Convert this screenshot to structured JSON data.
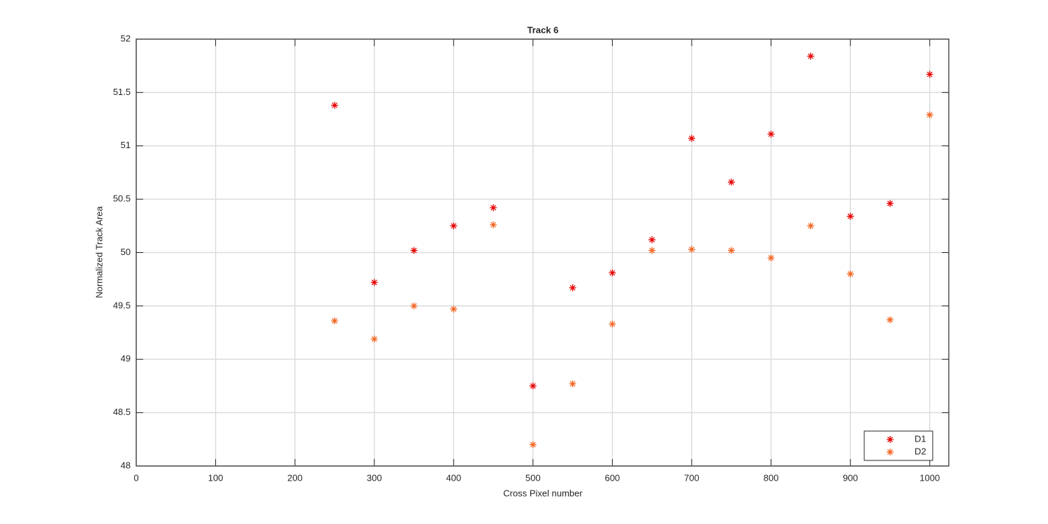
{
  "chart_data": {
    "type": "scatter",
    "title": "Track 6",
    "x_label": "Cross Pixel number",
    "y_label": "Normalized Track Area",
    "x": [
      250,
      300,
      350,
      400,
      450,
      500,
      550,
      600,
      650,
      700,
      750,
      800,
      850,
      900,
      950,
      1000
    ],
    "series": [
      {
        "name": "D1",
        "color": "#e60000",
        "values": [
          51.38,
          49.72,
          50.02,
          50.25,
          50.42,
          48.75,
          49.67,
          49.81,
          50.12,
          51.07,
          50.66,
          51.11,
          51.84,
          50.34,
          50.46,
          51.67
        ]
      },
      {
        "name": "D2",
        "color": "#f26522",
        "values": [
          49.36,
          49.19,
          49.5,
          49.47,
          50.26,
          48.2,
          48.77,
          49.33,
          50.02,
          50.03,
          50.02,
          49.95,
          50.25,
          49.8,
          49.37,
          51.29
        ]
      }
    ],
    "xlim": [
      0,
      1024
    ],
    "xticks": [
      0,
      100,
      200,
      300,
      400,
      500,
      600,
      700,
      800,
      900,
      1000
    ],
    "ylim": [
      48,
      52
    ],
    "yticks": [
      48,
      48.5,
      49,
      49.5,
      50,
      50.5,
      51,
      51.5,
      52
    ],
    "grid": true,
    "legend": "southeast"
  }
}
